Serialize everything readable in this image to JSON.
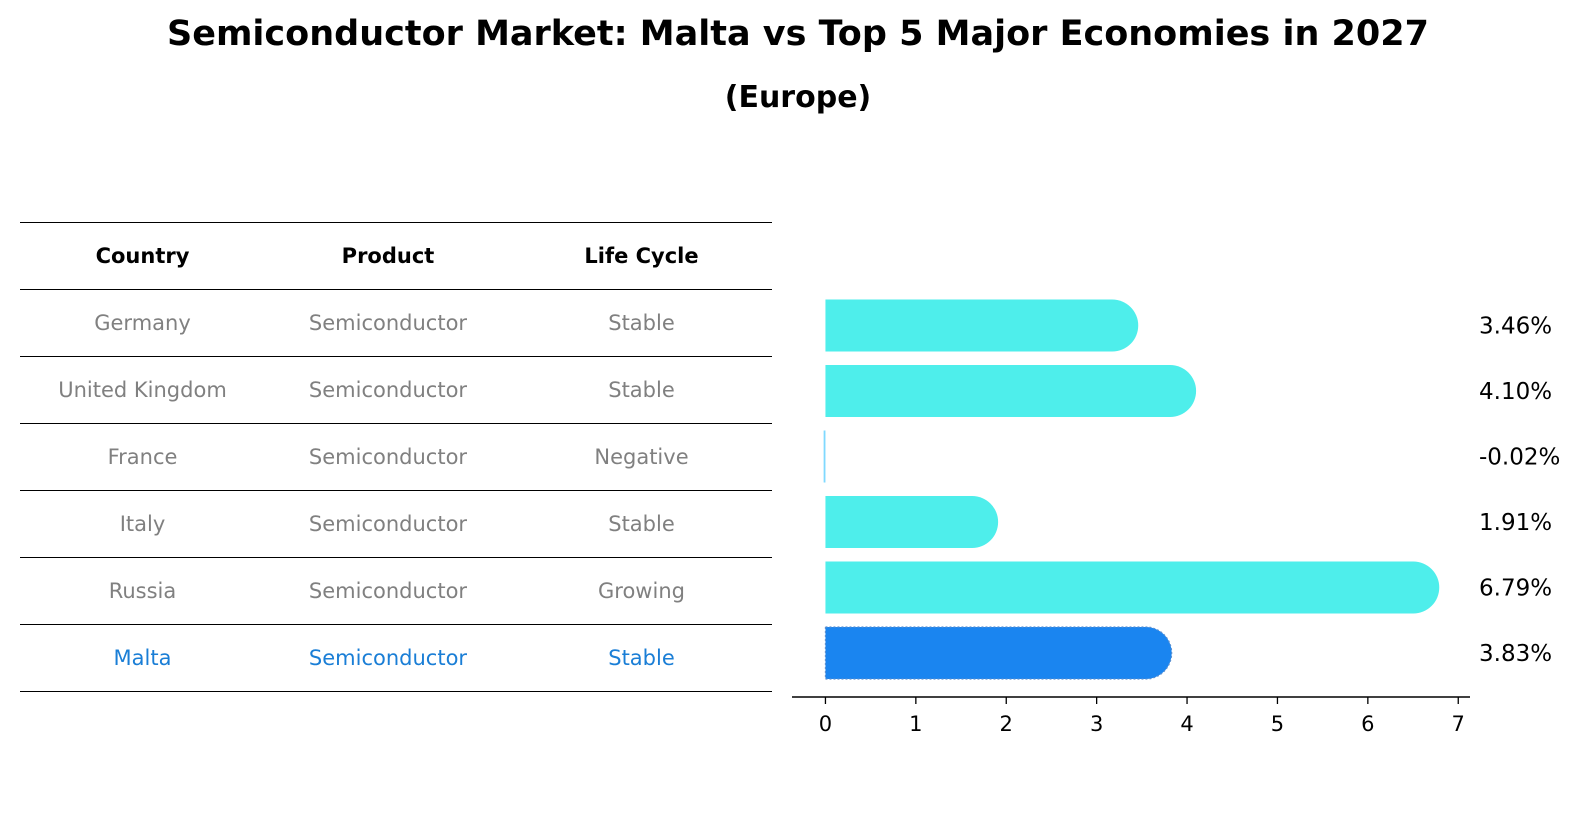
{
  "header": {
    "title": "Semiconductor Market: Malta vs Top 5 Major Economies in 2027",
    "subtitle": "(Europe)"
  },
  "table": {
    "columns": [
      "Country",
      "Product",
      "Life Cycle"
    ],
    "rows": [
      {
        "country": "Germany",
        "product": "Semiconductor",
        "life_cycle": "Stable",
        "highlight": false
      },
      {
        "country": "United Kingdom",
        "product": "Semiconductor",
        "life_cycle": "Stable",
        "highlight": false
      },
      {
        "country": "France",
        "product": "Semiconductor",
        "life_cycle": "Negative",
        "highlight": false
      },
      {
        "country": "Italy",
        "product": "Semiconductor",
        "life_cycle": "Stable",
        "highlight": false
      },
      {
        "country": "Russia",
        "product": "Semiconductor",
        "life_cycle": "Growing",
        "highlight": false
      },
      {
        "country": "Malta",
        "product": "Semiconductor",
        "life_cycle": "Stable",
        "highlight": true
      }
    ]
  },
  "colors": {
    "bar": "#4eeeeb",
    "highlight_bar": "#1a85f0",
    "negative_bar": "#7fd9ff",
    "highlight_text": "#1a7ed6",
    "muted_text": "#808080"
  },
  "chart_data": {
    "type": "bar",
    "orientation": "horizontal",
    "categories": [
      "Germany",
      "United Kingdom",
      "France",
      "Italy",
      "Russia",
      "Malta"
    ],
    "values": [
      3.46,
      4.1,
      -0.02,
      1.91,
      6.79,
      3.83
    ],
    "value_labels": [
      "3.46%",
      "4.10%",
      "-0.02%",
      "1.91%",
      "6.79%",
      "3.83%"
    ],
    "highlight": "Malta",
    "xlim": [
      -0.37,
      7.13
    ],
    "xticks": [
      0,
      1,
      2,
      3,
      4,
      5,
      6,
      7
    ],
    "xlabel": "",
    "ylabel": "",
    "grid": false
  }
}
